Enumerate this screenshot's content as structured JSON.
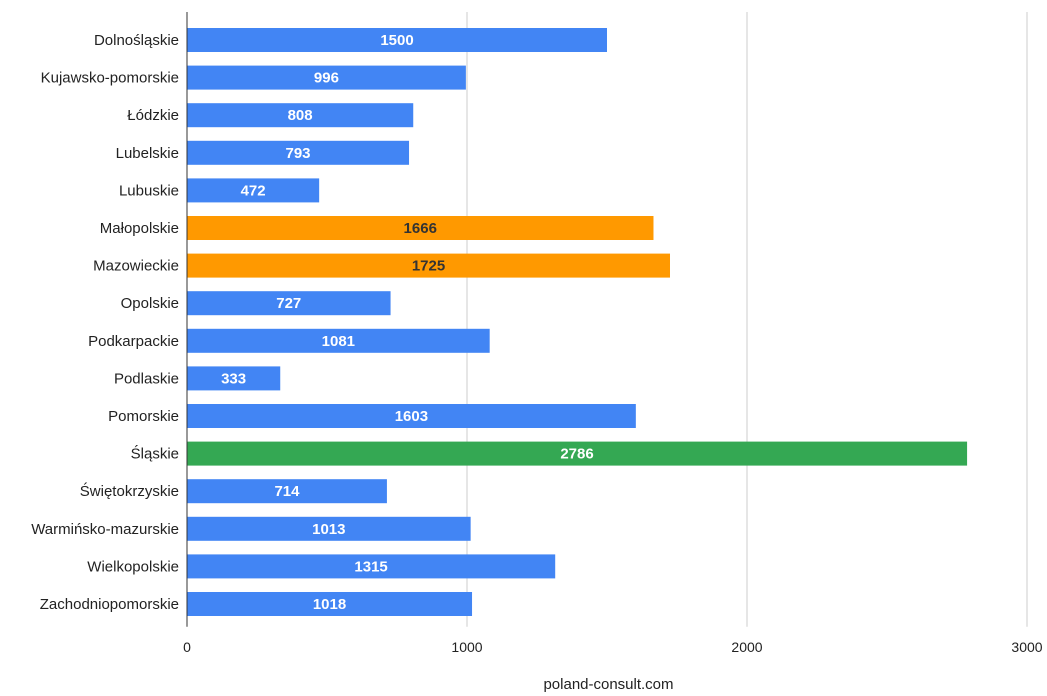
{
  "chart_data": {
    "type": "bar",
    "orientation": "horizontal",
    "categories": [
      "Dolnośląskie",
      "Kujawsko-pomorskie",
      "Łódzkie",
      "Lubelskie",
      "Lubuskie",
      "Małopolskie",
      "Mazowieckie",
      "Opolskie",
      "Podkarpackie",
      "Podlaskie",
      "Pomorskie",
      "Śląskie",
      "Świętokrzyskie",
      "Warmińsko-mazurskie",
      "Wielkopolskie",
      "Zachodniopomorskie"
    ],
    "values": [
      1500,
      996,
      808,
      793,
      472,
      1666,
      1725,
      727,
      1081,
      333,
      1603,
      2786,
      714,
      1013,
      1315,
      1018
    ],
    "bar_colors": [
      "#4285f4",
      "#4285f4",
      "#4285f4",
      "#4285f4",
      "#4285f4",
      "#ff9900",
      "#ff9900",
      "#4285f4",
      "#4285f4",
      "#4285f4",
      "#4285f4",
      "#34a853",
      "#4285f4",
      "#4285f4",
      "#4285f4",
      "#4285f4"
    ],
    "label_colors": [
      "#ffffff",
      "#ffffff",
      "#ffffff",
      "#ffffff",
      "#ffffff",
      "#333333",
      "#333333",
      "#ffffff",
      "#ffffff",
      "#ffffff",
      "#ffffff",
      "#ffffff",
      "#ffffff",
      "#ffffff",
      "#ffffff",
      "#ffffff"
    ],
    "xlim": [
      0,
      3000
    ],
    "x_ticks": [
      0,
      1000,
      2000,
      3000
    ],
    "x_tick_labels": [
      "0",
      "1000",
      "2000",
      "3000"
    ],
    "grid": true,
    "title": "",
    "xlabel": "",
    "ylabel": ""
  },
  "source": "poland-consult.com"
}
